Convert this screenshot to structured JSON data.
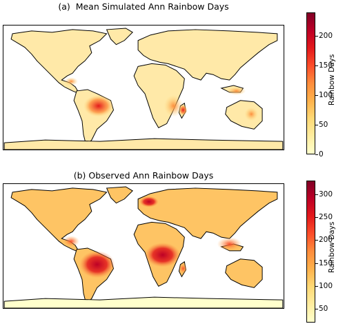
{
  "panels": [
    {
      "title": "(a)  Mean Simulated Ann Rainbow Days",
      "colorbar": {
        "label": "Rainbow Days",
        "ticks": [
          "0",
          "50",
          "100",
          "150",
          "200"
        ],
        "tick_values": [
          0,
          50,
          100,
          150,
          200
        ],
        "range": [
          0,
          240
        ]
      }
    },
    {
      "title": "(b) Observed Ann Rainbow Days",
      "colorbar": {
        "label": "Rainbow Days",
        "ticks": [
          "50",
          "100",
          "150",
          "200",
          "250",
          "300"
        ],
        "tick_values": [
          50,
          100,
          150,
          200,
          250,
          300
        ],
        "range": [
          20,
          330
        ]
      }
    }
  ],
  "colormap": [
    "#ffffcc",
    "#ffeda0",
    "#fed976",
    "#feb24c",
    "#fd8d3c",
    "#fc4e2a",
    "#e31a1c",
    "#bd0026",
    "#800026"
  ]
}
